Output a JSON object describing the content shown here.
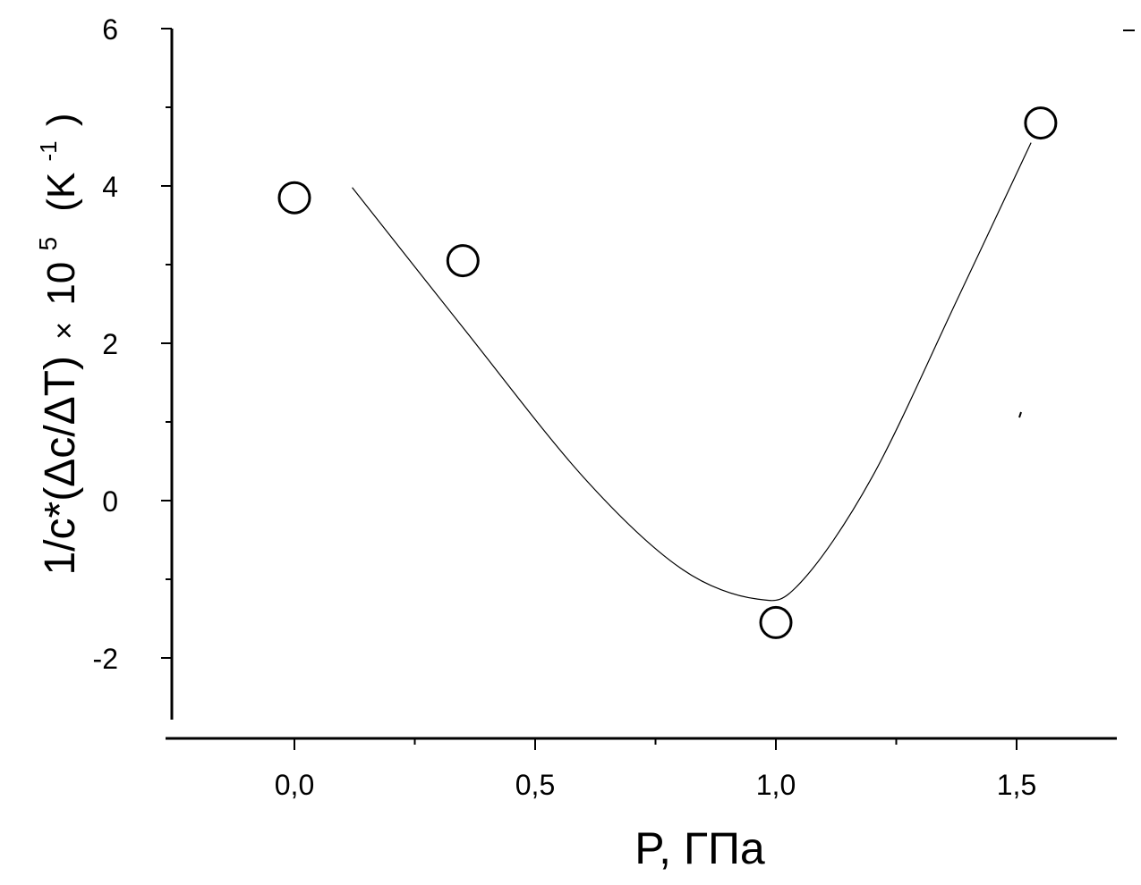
{
  "chart_data": {
    "type": "scatter",
    "title": "",
    "xlabel": "P, ГПа",
    "ylabel": {
      "prefix": "1/c*(Δc/ΔT)",
      "times": "×",
      "base": "10",
      "exp": "5",
      "unit_open": "(K",
      "unit_exp": "-1",
      "unit_close": ")"
    },
    "xlim": [
      -0.25,
      1.72
    ],
    "ylim": [
      -2.8,
      6
    ],
    "x_ticks": [
      {
        "value": 0.0,
        "label": "0,0"
      },
      {
        "value": 0.5,
        "label": "0,5"
      },
      {
        "value": 1.0,
        "label": "1,0"
      },
      {
        "value": 1.5,
        "label": "1,5"
      }
    ],
    "x_minor_ticks": [
      0.25,
      0.75,
      1.25
    ],
    "y_ticks": [
      {
        "value": -2,
        "label": "-2"
      },
      {
        "value": 0,
        "label": "0"
      },
      {
        "value": 2,
        "label": "2"
      },
      {
        "value": 4,
        "label": "4"
      },
      {
        "value": 6,
        "label": "6"
      }
    ],
    "y_minor_ticks": [
      -1,
      1,
      3,
      5
    ],
    "series": [
      {
        "marker": "open-circle",
        "points": [
          {
            "x": 0.0,
            "y": 3.85
          },
          {
            "x": 0.35,
            "y": 3.05
          },
          {
            "x": 1.0,
            "y": -1.55
          },
          {
            "x": 1.55,
            "y": 4.8
          }
        ]
      },
      {
        "marker": "line",
        "points": [
          {
            "x": 0.12,
            "y": 3.98
          },
          {
            "x": 0.35,
            "y": 2.2
          },
          {
            "x": 0.6,
            "y": 0.3
          },
          {
            "x": 0.8,
            "y": -0.85
          },
          {
            "x": 0.96,
            "y": -1.25
          },
          {
            "x": 1.05,
            "y": -1.05
          },
          {
            "x": 1.2,
            "y": 0.3
          },
          {
            "x": 1.38,
            "y": 2.6
          },
          {
            "x": 1.53,
            "y": 4.55
          }
        ]
      }
    ],
    "grid": false,
    "legend": "none",
    "colors": {
      "ink": "#000000",
      "background": "#ffffff"
    }
  }
}
